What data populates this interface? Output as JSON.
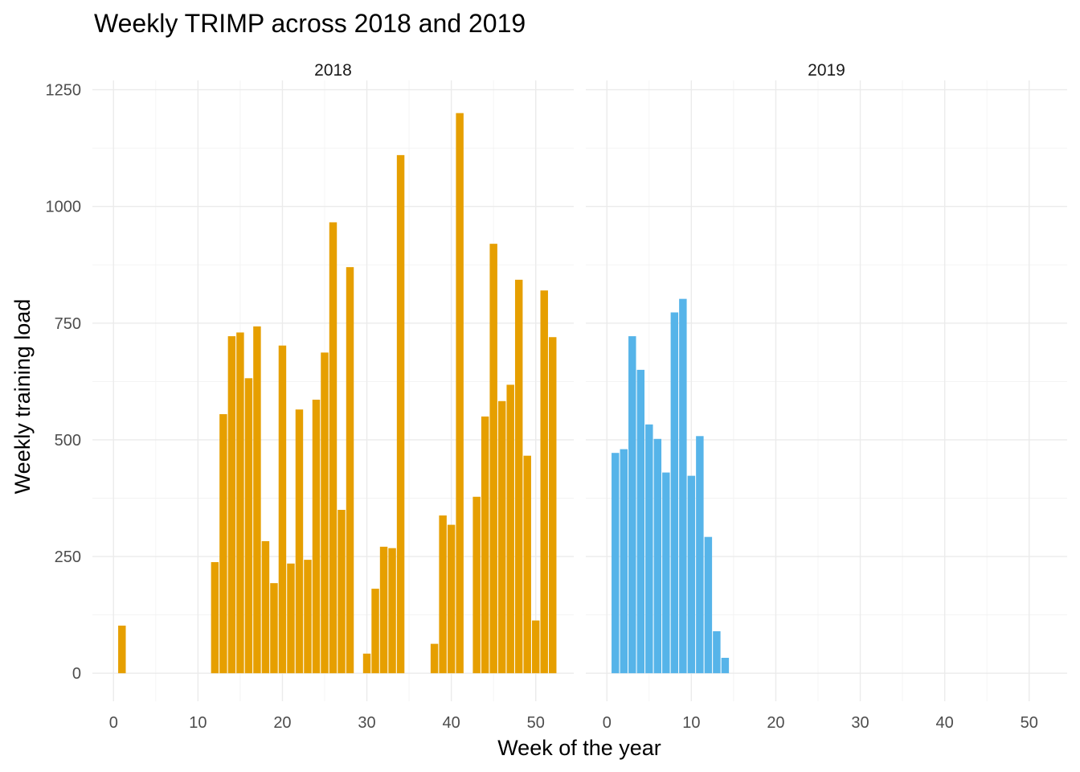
{
  "chart_data": {
    "type": "bar",
    "title": "Weekly TRIMP across 2018 and 2019",
    "xlabel": "Week of the year",
    "ylabel": "Weekly training load",
    "xlim": [
      -2.5,
      54.5
    ],
    "ylim": [
      -60,
      1270
    ],
    "x_ticks": [
      0,
      10,
      20,
      30,
      40,
      50
    ],
    "y_ticks": [
      0,
      250,
      500,
      750,
      1000,
      1250
    ],
    "grid": true,
    "legend": "none",
    "panels": [
      {
        "label": "2018",
        "color": "#E69F00",
        "x": [
          1,
          12,
          13,
          14,
          15,
          16,
          17,
          18,
          19,
          20,
          21,
          22,
          23,
          24,
          25,
          26,
          27,
          28,
          30,
          31,
          32,
          33,
          34,
          38,
          39,
          40,
          41,
          43,
          44,
          45,
          46,
          47,
          48,
          49,
          50,
          51,
          52
        ],
        "values": [
          102,
          238,
          555,
          722,
          730,
          632,
          743,
          283,
          193,
          702,
          235,
          565,
          243,
          586,
          687,
          966,
          350,
          870,
          42,
          181,
          271,
          268,
          1110,
          63,
          338,
          318,
          1200,
          378,
          550,
          920,
          583,
          618,
          843,
          466,
          113,
          820,
          720
        ]
      },
      {
        "label": "2019",
        "color": "#56B4E9",
        "x": [
          1,
          2,
          3,
          4,
          5,
          6,
          7,
          8,
          9,
          10,
          11,
          12,
          13,
          14
        ],
        "values": [
          472,
          480,
          722,
          650,
          533,
          502,
          430,
          773,
          802,
          423,
          508,
          292,
          90,
          33
        ]
      }
    ]
  }
}
